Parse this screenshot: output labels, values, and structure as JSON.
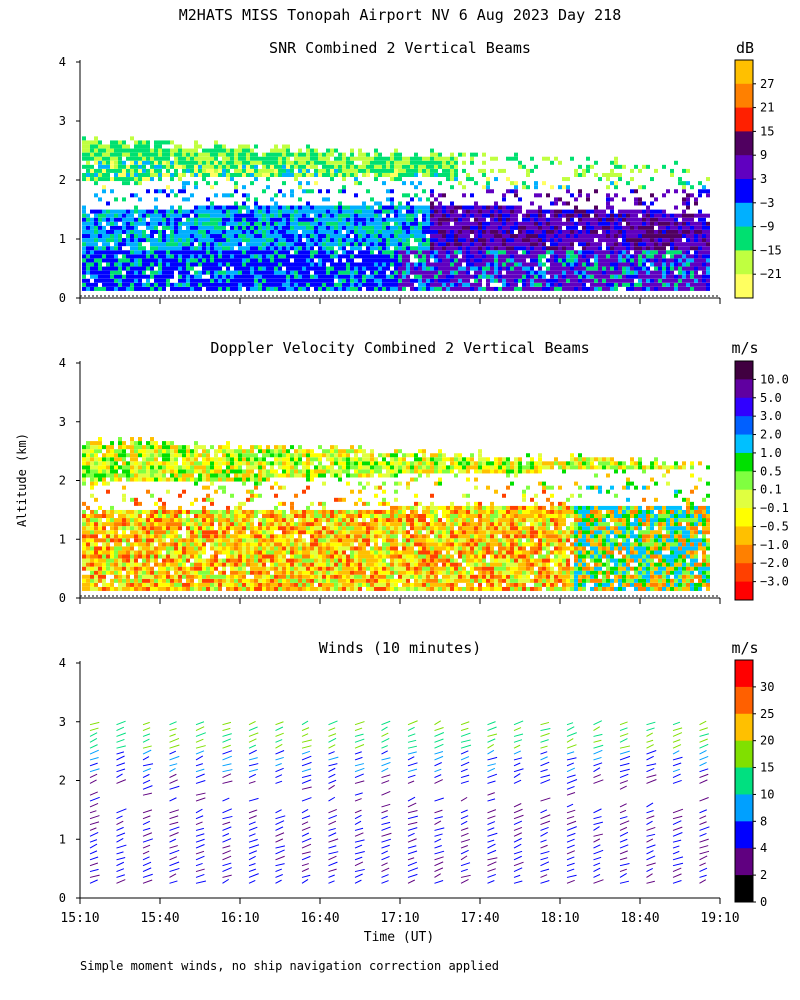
{
  "title": "M2HATS MISS Tonopah Airport NV   6 Aug 2023 Day 218",
  "ylabel": "Altitude (km)",
  "xlabel": "Time (UT)",
  "footnote": "Simple moment winds, no ship navigation correction applied",
  "xaxis": {
    "ticks": [
      "15:10",
      "15:40",
      "16:10",
      "16:40",
      "17:10",
      "17:40",
      "18:10",
      "18:40",
      "19:10"
    ],
    "range_min": [
      0,
      240
    ]
  },
  "yaxis": {
    "ticks": [
      "0",
      "1",
      "2",
      "3",
      "4"
    ],
    "range_km": [
      0,
      4
    ]
  },
  "chart_data": [
    {
      "type": "heatmap",
      "title": "SNR Combined 2 Vertical Beams",
      "unit": "dB",
      "colorbar": {
        "labels": [
          "27",
          "21",
          "15",
          "9",
          "3",
          "−3",
          "−9",
          "−15",
          "−21"
        ],
        "colors": [
          "#ffc000",
          "#ff8000",
          "#ff2000",
          "#500060",
          "#6000c0",
          "#0000ff",
          "#00b0ff",
          "#00e070",
          "#c0ff40",
          "#ffff60"
        ]
      }
    },
    {
      "type": "heatmap",
      "title": "Doppler Velocity Combined 2 Vertical Beams",
      "unit": "m/s",
      "colorbar": {
        "labels": [
          "10.0",
          "5.0",
          "3.0",
          "2.0",
          "1.0",
          "0.5",
          "0.1",
          "−0.1",
          "−0.5",
          "−1.0",
          "−2.0",
          "−3.0"
        ],
        "colors": [
          "#400040",
          "#6000a0",
          "#3000ff",
          "#0060ff",
          "#00c0ff",
          "#00e000",
          "#80ff40",
          "#e0ff40",
          "#ffff00",
          "#ffc000",
          "#ff8000",
          "#ff4000",
          "#ff0000"
        ]
      }
    },
    {
      "type": "wind_barbs",
      "title": "Winds (10 minutes)",
      "unit": "m/s",
      "colorbar": {
        "labels": [
          "30",
          "25",
          "20",
          "15",
          "10",
          "8",
          "4",
          "2",
          "0"
        ],
        "colors": [
          "#ff0000",
          "#ff6000",
          "#ffc000",
          "#80e000",
          "#00e080",
          "#00a0ff",
          "#0000ff",
          "#600080",
          "#000000"
        ]
      }
    }
  ],
  "colors": {
    "frame": "#000000",
    "background": "#ffffff"
  }
}
